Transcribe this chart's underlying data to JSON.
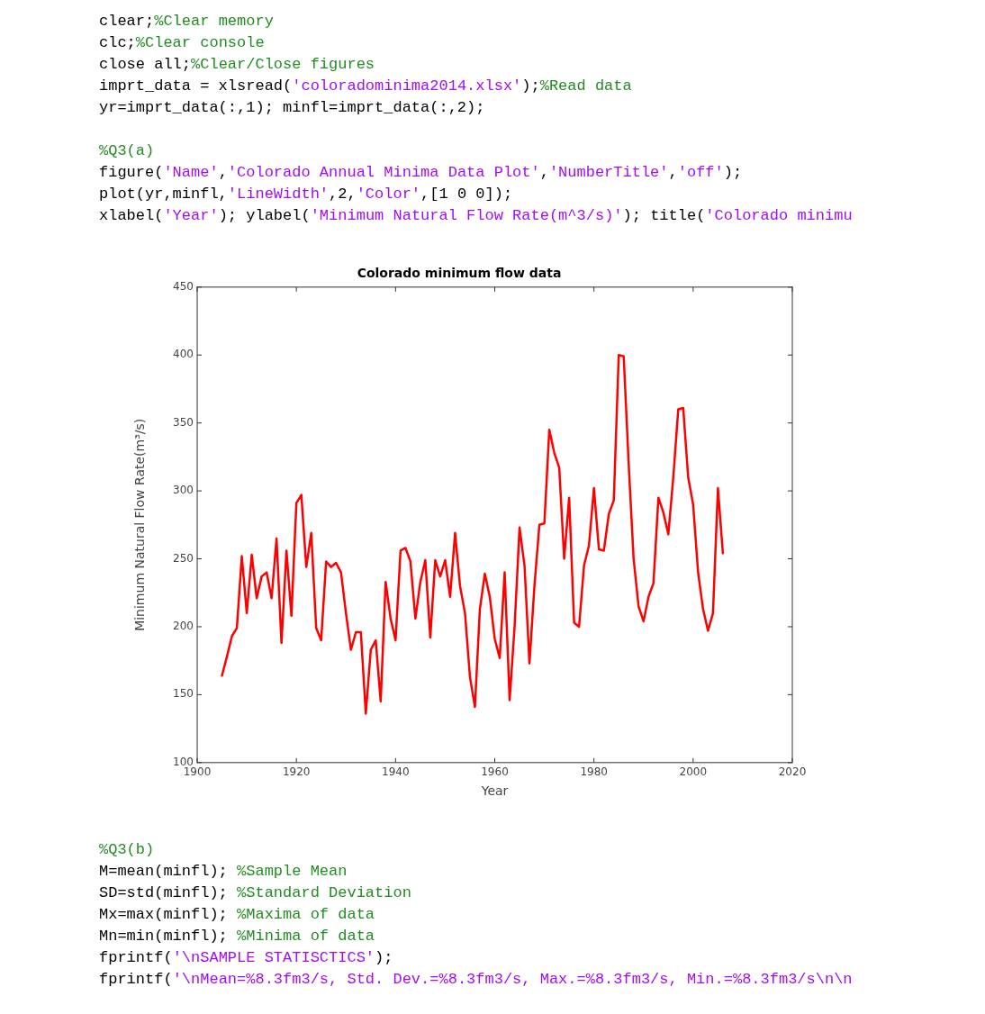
{
  "chart_data": {
    "type": "line",
    "title": "Colorado minimum flow data",
    "xlabel": "Year",
    "ylabel": "Minimum Natural Flow Rate(m³/s)",
    "x": [
      1905,
      1906,
      1907,
      1908,
      1909,
      1910,
      1911,
      1912,
      1913,
      1914,
      1915,
      1916,
      1917,
      1918,
      1919,
      1920,
      1921,
      1922,
      1923,
      1924,
      1925,
      1926,
      1927,
      1928,
      1929,
      1930,
      1931,
      1932,
      1933,
      1934,
      1935,
      1936,
      1937,
      1938,
      1939,
      1940,
      1941,
      1942,
      1943,
      1944,
      1945,
      1946,
      1947,
      1948,
      1949,
      1950,
      1951,
      1952,
      1953,
      1954,
      1955,
      1956,
      1957,
      1958,
      1959,
      1960,
      1961,
      1962,
      1963,
      1964,
      1965,
      1966,
      1967,
      1968,
      1969,
      1970,
      1971,
      1972,
      1973,
      1974,
      1975,
      1976,
      1977,
      1978,
      1979,
      1980,
      1981,
      1982,
      1983,
      1984,
      1985,
      1986,
      1987,
      1988,
      1989,
      1990,
      1991,
      1992,
      1993,
      1994,
      1995,
      1996,
      1997,
      1998,
      1999,
      2000,
      2001,
      2002,
      2003,
      2004,
      2005,
      2006
    ],
    "series": [
      {
        "color": "#ff0000",
        "values": [
          164,
          178,
          193,
          199,
          252,
          210,
          253,
          221,
          237,
          240,
          221,
          265,
          188,
          256,
          208,
          291,
          297,
          244,
          269,
          199,
          190,
          248,
          244,
          247,
          240,
          210,
          183,
          196,
          196,
          136,
          183,
          190,
          145,
          233,
          206,
          190,
          256,
          258,
          248,
          206,
          233,
          249,
          192,
          249,
          237,
          249,
          222,
          269,
          230,
          210,
          163,
          141,
          213,
          239,
          222,
          191,
          177,
          240,
          146,
          200,
          273,
          245,
          173,
          230,
          275,
          276,
          345,
          328,
          317,
          250,
          295,
          203,
          200,
          245,
          260,
          302,
          257,
          256,
          283,
          293,
          400,
          399,
          320,
          250,
          215,
          204,
          222,
          232,
          295,
          284,
          268,
          310,
          360,
          361,
          310,
          290,
          240,
          213,
          197,
          210,
          302,
          254
        ]
      }
    ],
    "xlim": [
      1900,
      2020
    ],
    "xticks": [
      1900,
      1920,
      1940,
      1960,
      1980,
      2000,
      2020
    ],
    "ylim": [
      100,
      450
    ],
    "yticks": [
      100,
      150,
      200,
      250,
      300,
      350,
      400,
      450
    ],
    "grid": false,
    "legend": false,
    "marker": "none",
    "line_style": "solid",
    "annotations": [
      "clear;%Clear memory",
      "clc;%Clear console",
      "close all;%Clear/Close figures",
      "imprt_data = xlsread('coloradominima2014.xlsx');%Read data",
      "yr=imprt_data(:,1); minfl=imprt_data(:,2);",
      "%Q3(a)",
      "figure('Name','Colorado Annual Minima Data Plot','NumberTitle','off');",
      "plot(yr,minfl,'LineWidth',2,'Color',[1 0 0]);",
      "xlabel('Year'); ylabel('Minimum Natural Flow Rate(m^3/s)'); title('Colorado minimu",
      "%Q3(b)",
      "M=mean(minfl); %Sample Mean",
      "SD=std(minfl); %Standard Deviation",
      "Mx=max(minfl); %Maxima of data",
      "Mn=min(minfl); %Minima of data",
      "fprintf('\\nSAMPLE STATISCTICS');",
      "fprintf('\\nMean=%8.3fm3/s, Std. Dev.=%8.3fm3/s, Max.=%8.3fm3/s, Min.=%8.3fm3/s\\n\\n"
    ]
  }
}
